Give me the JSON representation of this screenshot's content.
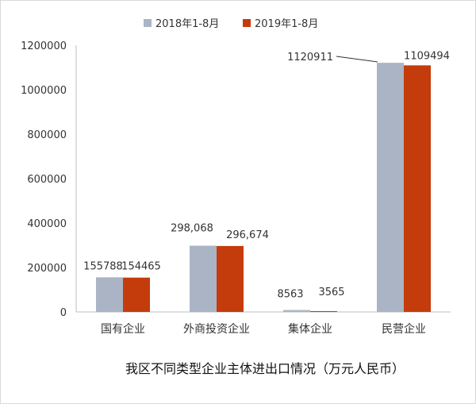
{
  "chart_data": {
    "type": "bar",
    "categories": [
      "国有企业",
      "外商投资企业",
      "集体企业",
      "民营企业"
    ],
    "series": [
      {
        "name": "2018年1-8月",
        "color": "#aab4c4",
        "values": [
          155788,
          298068,
          8563,
          1120911
        ],
        "labels": [
          "155788",
          "298,068",
          "8563",
          "1120911"
        ]
      },
      {
        "name": "2019年1-8月",
        "color": "#c43c0c",
        "values": [
          154465,
          296674,
          3565,
          1109494
        ],
        "labels": [
          "154465",
          "296,674",
          "3565",
          "1109494"
        ]
      }
    ],
    "y_ticks": [
      "0",
      "200000",
      "400000",
      "600000",
      "800000",
      "1000000",
      "1200000"
    ],
    "ylim": [
      0,
      1200000
    ],
    "grid": false,
    "legend_position": "top",
    "caption": "我区不同类型企业主体进出口情况（万元人民币）"
  }
}
